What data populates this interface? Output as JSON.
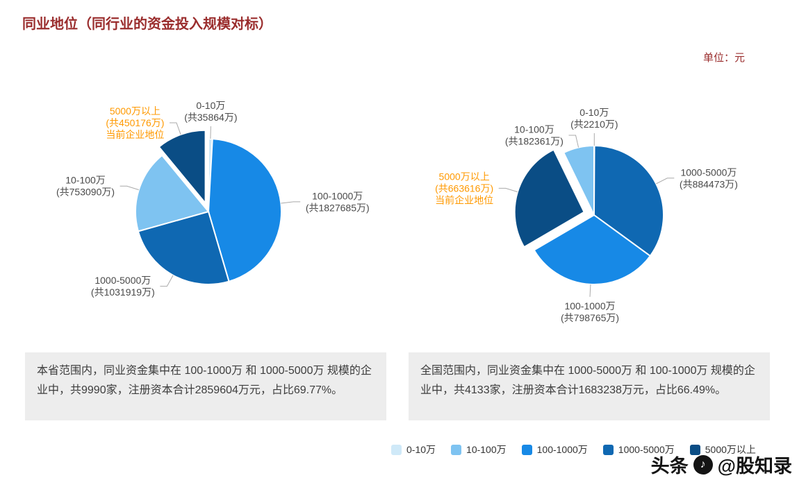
{
  "page": {
    "title": "同业地位（同行业的资金投入规模对标）",
    "unit_label": "单位：元"
  },
  "colors": {
    "title_red": "#9a2d2d",
    "highlight_orange": "#ff9900",
    "label_gray": "#4a4a4a",
    "palette": [
      "#cfe9f8",
      "#7ec3f1",
      "#1789e6",
      "#0f68b2",
      "#0a4d85"
    ]
  },
  "legend": {
    "items": [
      {
        "label": "0-10万",
        "color": "#cfe9f8"
      },
      {
        "label": "10-100万",
        "color": "#7ec3f1"
      },
      {
        "label": "100-1000万",
        "color": "#1789e6"
      },
      {
        "label": "1000-5000万",
        "color": "#0f68b2"
      },
      {
        "label": "5000万以上",
        "color": "#0a4d85"
      }
    ]
  },
  "chart_data": [
    {
      "type": "pie",
      "scope": "本省",
      "unit": "万",
      "slice_order": "clockwise-from-top",
      "slices": [
        {
          "name": "0-10万",
          "value": 35864,
          "sub": "(共35864万)",
          "color": "#cfe9f8"
        },
        {
          "name": "100-1000万",
          "value": 1827685,
          "sub": "(共1827685万)",
          "color": "#1789e6"
        },
        {
          "name": "1000-5000万",
          "value": 1031919,
          "sub": "(共1031919万)",
          "color": "#0f68b2"
        },
        {
          "name": "10-100万",
          "value": 753090,
          "sub": "(共753090万)",
          "color": "#7ec3f1"
        },
        {
          "name": "5000万以上",
          "value": 450176,
          "sub": "(共450176万)",
          "note": "当前企业地位",
          "selected": true,
          "color": "#0a4d85"
        }
      ]
    },
    {
      "type": "pie",
      "scope": "全国",
      "unit": "万",
      "slice_order": "clockwise-from-top",
      "slices": [
        {
          "name": "0-10万",
          "value": 2210,
          "sub": "(共2210万)",
          "color": "#cfe9f8"
        },
        {
          "name": "1000-5000万",
          "value": 884473,
          "sub": "(共884473万)",
          "color": "#0f68b2"
        },
        {
          "name": "100-1000万",
          "value": 798765,
          "sub": "(共798765万)",
          "color": "#1789e6"
        },
        {
          "name": "5000万以上",
          "value": 663616,
          "sub": "(共663616万)",
          "note": "当前企业地位",
          "selected": true,
          "color": "#0a4d85"
        },
        {
          "name": "10-100万",
          "value": 182361,
          "sub": "(共182361万)",
          "color": "#7ec3f1"
        }
      ]
    }
  ],
  "summaries": [
    {
      "text": "本省范围内，同业资金集中在 100-1000万 和 1000-5000万 规模的企业中，共9990家，注册资本合计2859604万元，占比69.77%。"
    },
    {
      "text": "全国范围内，同业资金集中在 1000-5000万 和 100-1000万 规模的企业中，共4133家，注册资本合计1683238万元，占比66.49%。"
    }
  ],
  "watermark": {
    "prefix": "头条",
    "handle": "@股知录"
  }
}
